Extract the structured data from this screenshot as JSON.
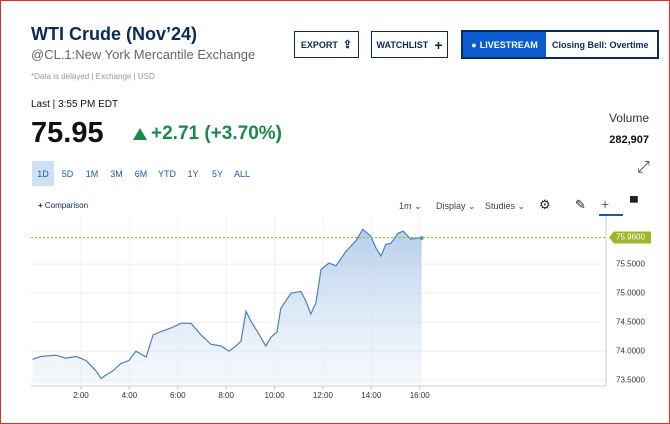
{
  "header": {
    "title": "WTI Crude (Nov’24)",
    "symbol": "@CL.1:New York Mercantile Exchange",
    "buttons": [
      "EXPORT",
      "WATCHLIST",
      "LIVESTREAM",
      "Closing Bell: Overtime"
    ],
    "note": "*Data is delayed | Exchange | USD"
  },
  "quote": {
    "last_time": "Last | 3:55 PM EDT",
    "price": "75.95",
    "change": "+2.71 (+3.70%)",
    "volume_label": "Volume",
    "volume": "282,907"
  },
  "range_buttons": [
    "1D",
    "5D",
    "1M",
    "3M",
    "6M",
    "YTD",
    "1Y",
    "5Y",
    "ALL"
  ],
  "toolbar": {
    "comparison": "Comparison",
    "interval": "1m",
    "display": "Display",
    "studies": "Studies"
  },
  "chart_data": {
    "type": "area",
    "x": [
      0,
      0.35,
      0.97,
      1.38,
      1.79,
      2.21,
      2.62,
      2.83,
      3.03,
      3.32,
      3.65,
      3.98,
      4.27,
      4.69,
      4.98,
      5.31,
      5.72,
      6.13,
      6.55,
      6.96,
      7.37,
      7.79,
      8.12,
      8.4,
      8.61,
      8.82,
      9.02,
      9.36,
      9.64,
      9.85,
      10.1,
      10.26,
      10.68,
      11.09,
      11.3,
      11.5,
      11.71,
      11.92,
      12.25,
      12.54,
      12.95,
      13.36,
      13.65,
      13.98,
      14.19,
      14.4,
      14.6,
      14.81,
      15.1,
      15.31,
      15.64,
      15.88,
      16.08
    ],
    "series": [
      {
        "color": "#4d7fbf",
        "values": [
          73.86,
          73.91,
          73.93,
          73.88,
          73.91,
          73.84,
          73.66,
          73.53,
          73.59,
          73.66,
          73.79,
          73.84,
          74.0,
          73.9,
          74.28,
          74.34,
          74.4,
          74.48,
          74.48,
          74.28,
          74.12,
          74.09,
          74.0,
          74.09,
          74.17,
          74.69,
          74.52,
          74.29,
          74.09,
          74.24,
          74.33,
          74.74,
          75.0,
          75.03,
          74.86,
          74.64,
          74.83,
          75.41,
          75.52,
          75.47,
          75.72,
          75.9,
          76.1,
          75.98,
          75.78,
          75.64,
          75.84,
          75.86,
          76.03,
          76.07,
          75.93,
          75.95,
          75.95
        ]
      }
    ],
    "xlim": [
      0,
      23.7
    ],
    "ylim": [
      73.4,
      76.33
    ],
    "xticks": [
      {
        "value": 2,
        "label": "2:00"
      },
      {
        "value": 4,
        "label": "4:00"
      },
      {
        "value": 6,
        "label": "6:00"
      },
      {
        "value": 8,
        "label": "8:00"
      },
      {
        "value": 10,
        "label": "10:00"
      },
      {
        "value": 12,
        "label": "12:00"
      },
      {
        "value": 14,
        "label": "14:00"
      },
      {
        "value": 16,
        "label": "16:00"
      }
    ],
    "yticks": [
      {
        "value": 73.5,
        "label": "73.5000"
      },
      {
        "value": 74,
        "label": "74.0000"
      },
      {
        "value": 74.5,
        "label": "74.5000"
      },
      {
        "value": 75,
        "label": "75.0000"
      },
      {
        "value": 75.5,
        "label": "75.5000"
      }
    ],
    "reference_line": {
      "value": 75.96,
      "label": "75.9600",
      "color": "#9ab82a"
    },
    "grid": true
  }
}
